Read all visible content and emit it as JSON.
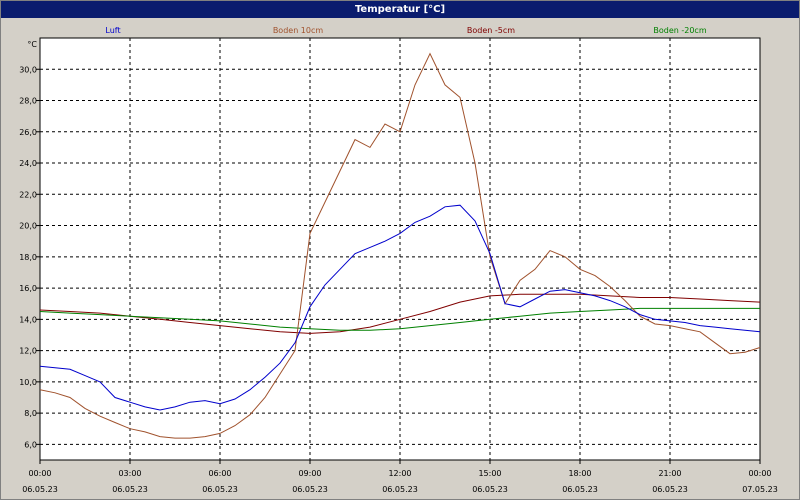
{
  "window": {
    "title": "Temperatur [°C]"
  },
  "chart_data": {
    "type": "line",
    "title": "Temperatur [°C]",
    "ylabel": "°C",
    "xlabel": "",
    "ylim": [
      5,
      32
    ],
    "xlim": [
      0,
      24
    ],
    "grid": true,
    "legend_position": "top",
    "y_ticks": [
      "6,0",
      "8,0",
      "10,0",
      "12,0",
      "14,0",
      "16,0",
      "18,0",
      "20,0",
      "22,0",
      "24,0",
      "26,0",
      "28,0",
      "30,0"
    ],
    "x_ticks": [
      {
        "time": "00:00",
        "date": "06.05.23"
      },
      {
        "time": "03:00",
        "date": "06.05.23"
      },
      {
        "time": "06:00",
        "date": "06.05.23"
      },
      {
        "time": "09:00",
        "date": "06.05.23"
      },
      {
        "time": "12:00",
        "date": "06.05.23"
      },
      {
        "time": "15:00",
        "date": "06.05.23"
      },
      {
        "time": "18:00",
        "date": "06.05.23"
      },
      {
        "time": "21:00",
        "date": "06.05.23"
      },
      {
        "time": "00:00",
        "date": "07.05.23"
      }
    ],
    "series": [
      {
        "name": "Luft",
        "color": "#0000cc",
        "x": [
          0,
          0.5,
          1,
          1.5,
          2,
          2.5,
          3,
          3.5,
          4,
          4.5,
          5,
          5.5,
          6,
          6.5,
          7,
          7.5,
          8,
          8.5,
          9,
          9.5,
          10,
          10.5,
          11,
          11.5,
          12,
          12.5,
          13,
          13.5,
          14,
          14.5,
          15,
          15.5,
          16,
          16.5,
          17,
          17.5,
          18,
          18.5,
          19,
          19.5,
          20,
          20.5,
          21,
          21.5,
          22,
          22.5,
          23,
          23.5,
          24
        ],
        "y": [
          11.0,
          10.9,
          10.8,
          10.4,
          10.0,
          9.0,
          8.7,
          8.4,
          8.2,
          8.4,
          8.7,
          8.8,
          8.6,
          8.9,
          9.5,
          10.3,
          11.2,
          12.5,
          14.8,
          16.2,
          17.2,
          18.2,
          18.6,
          19.0,
          19.5,
          20.2,
          20.6,
          21.2,
          21.3,
          20.3,
          18.2,
          15.0,
          14.8,
          15.3,
          15.8,
          15.9,
          15.7,
          15.5,
          15.2,
          14.8,
          14.3,
          14.0,
          13.9,
          13.8,
          13.6,
          13.5,
          13.4,
          13.3,
          13.2
        ]
      },
      {
        "name": "Boden 10cm",
        "color": "#a0522d",
        "x": [
          0,
          0.5,
          1,
          1.5,
          2,
          2.5,
          3,
          3.5,
          4,
          4.5,
          5,
          5.5,
          6,
          6.5,
          7,
          7.5,
          8,
          8.5,
          9,
          9.5,
          10,
          10.5,
          11,
          11.5,
          12,
          12.5,
          13,
          13.5,
          14,
          14.5,
          15,
          15.5,
          16,
          16.5,
          17,
          17.5,
          18,
          18.5,
          19,
          19.5,
          20,
          20.5,
          21,
          21.5,
          22,
          22.5,
          23,
          23.5,
          24
        ],
        "y": [
          9.5,
          9.3,
          9.0,
          8.3,
          7.8,
          7.4,
          7.0,
          6.8,
          6.5,
          6.4,
          6.4,
          6.5,
          6.7,
          7.2,
          7.9,
          9.0,
          10.5,
          12.0,
          19.5,
          21.5,
          23.5,
          25.5,
          25.0,
          26.5,
          26.0,
          29.0,
          31.0,
          29.0,
          28.2,
          24.0,
          18.0,
          15.0,
          16.5,
          17.2,
          18.4,
          18.0,
          17.2,
          16.8,
          16.1,
          15.2,
          14.2,
          13.7,
          13.6,
          13.4,
          13.2,
          12.5,
          11.8,
          11.9,
          12.2
        ]
      },
      {
        "name": "Boden -5cm",
        "color": "#800000",
        "x": [
          0,
          1,
          2,
          3,
          4,
          5,
          6,
          7,
          8,
          9,
          10,
          11,
          12,
          13,
          14,
          15,
          16,
          17,
          18,
          19,
          20,
          21,
          22,
          23,
          24
        ],
        "y": [
          14.6,
          14.5,
          14.4,
          14.2,
          14.0,
          13.8,
          13.6,
          13.4,
          13.2,
          13.1,
          13.2,
          13.5,
          14.0,
          14.5,
          15.1,
          15.5,
          15.6,
          15.6,
          15.6,
          15.5,
          15.4,
          15.4,
          15.3,
          15.2,
          15.1
        ]
      },
      {
        "name": "Boden -20cm",
        "color": "#008000",
        "x": [
          0,
          1,
          2,
          3,
          4,
          5,
          6,
          7,
          8,
          9,
          10,
          11,
          12,
          13,
          14,
          15,
          16,
          17,
          18,
          19,
          20,
          21,
          22,
          23,
          24
        ],
        "y": [
          14.5,
          14.4,
          14.3,
          14.2,
          14.1,
          14.0,
          13.9,
          13.7,
          13.5,
          13.4,
          13.3,
          13.3,
          13.4,
          13.6,
          13.8,
          14.0,
          14.2,
          14.4,
          14.5,
          14.6,
          14.7,
          14.7,
          14.7,
          14.7,
          14.7
        ]
      }
    ]
  }
}
